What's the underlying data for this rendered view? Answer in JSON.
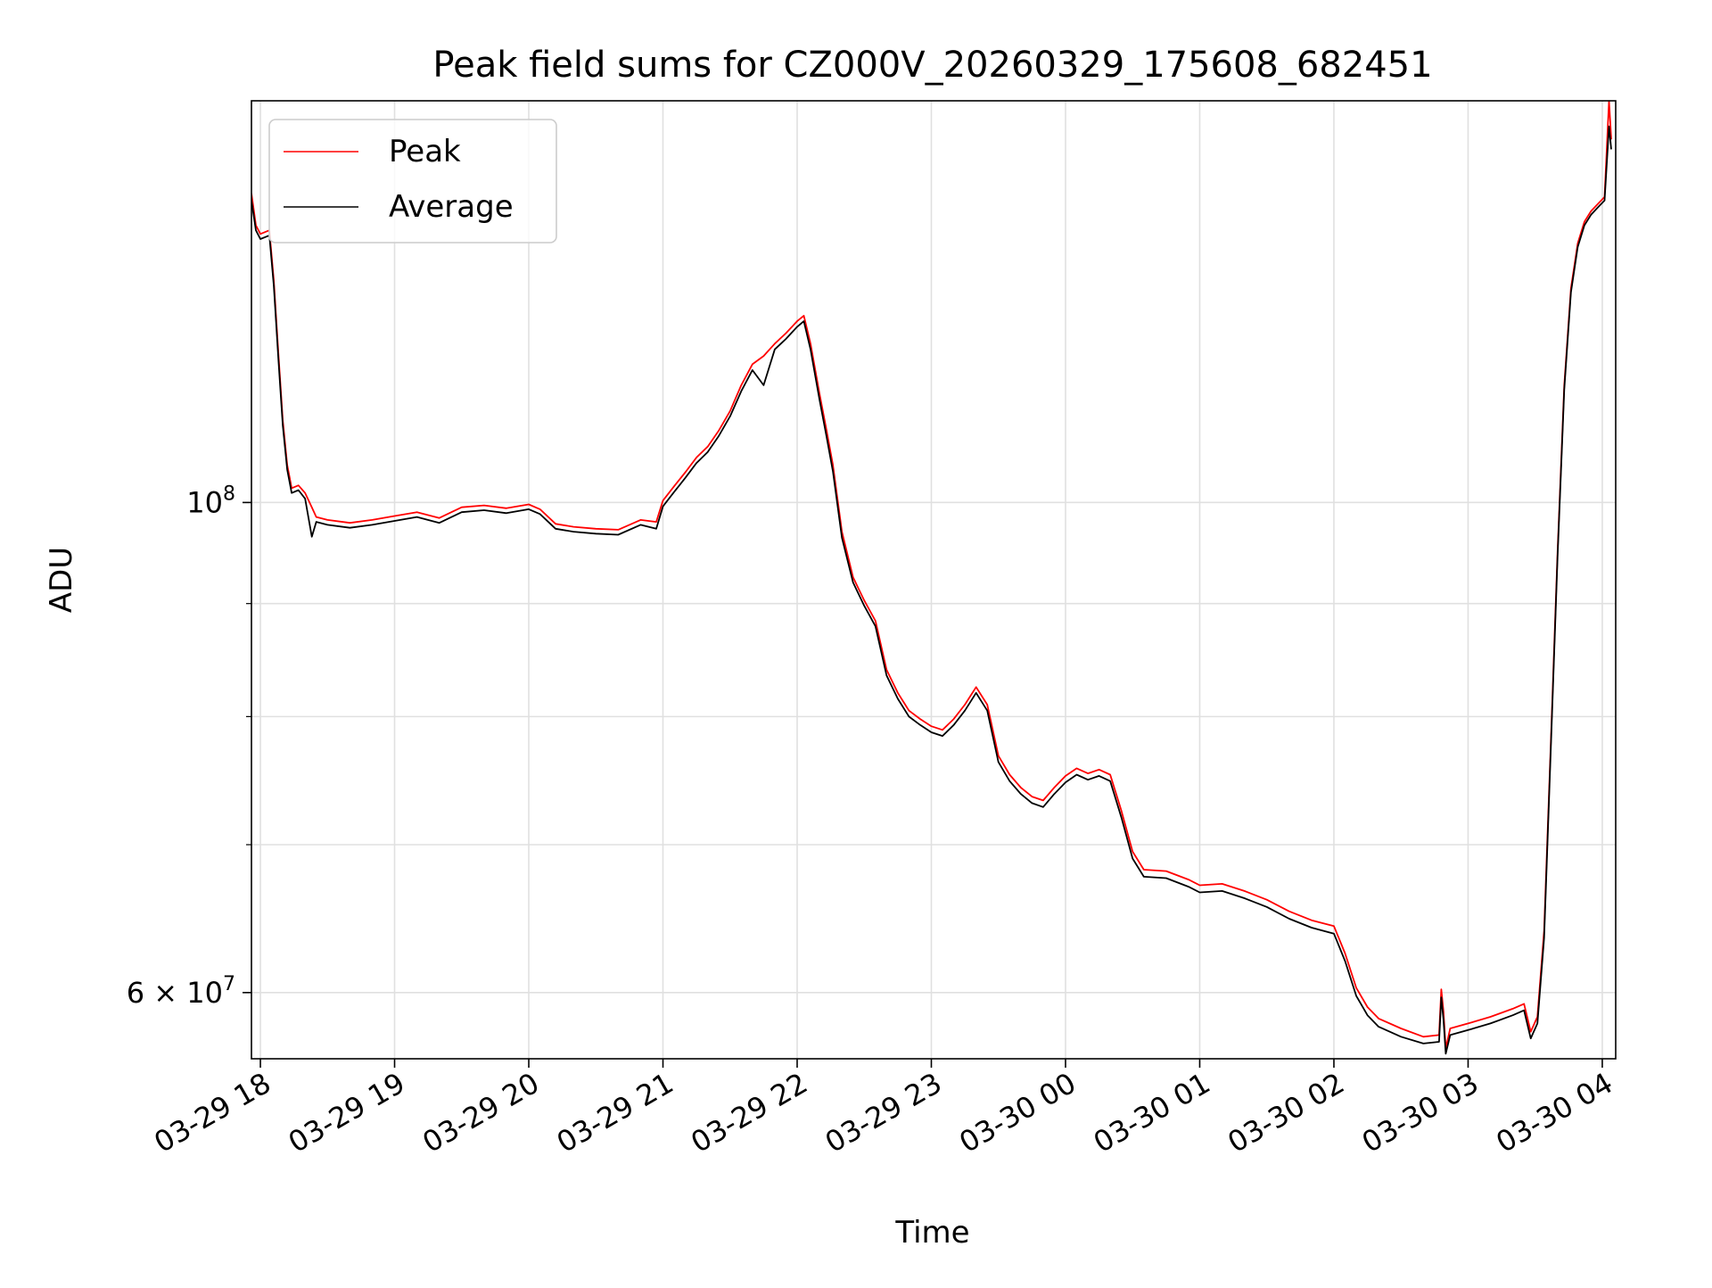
{
  "chart_data": {
    "type": "line",
    "title": "Peak field sums for CZ000V_20260329_175608_682451",
    "xlabel": "Time",
    "ylabel": "ADU",
    "y_scale": "log",
    "ylim": [
      56000000,
      152000000
    ],
    "xlim": [
      "2026-03-29 17:56",
      "2026-03-30 04:06"
    ],
    "x_ticks": [
      {
        "t": "2026-03-29 18:00",
        "label": "03-29 18"
      },
      {
        "t": "2026-03-29 19:00",
        "label": "03-29 19"
      },
      {
        "t": "2026-03-29 20:00",
        "label": "03-29 20"
      },
      {
        "t": "2026-03-29 21:00",
        "label": "03-29 21"
      },
      {
        "t": "2026-03-29 22:00",
        "label": "03-29 22"
      },
      {
        "t": "2026-03-29 23:00",
        "label": "03-29 23"
      },
      {
        "t": "2026-03-30 00:00",
        "label": "03-30 00"
      },
      {
        "t": "2026-03-30 01:00",
        "label": "03-30 01"
      },
      {
        "t": "2026-03-30 02:00",
        "label": "03-30 02"
      },
      {
        "t": "2026-03-30 03:00",
        "label": "03-30 03"
      },
      {
        "t": "2026-03-30 04:00",
        "label": "03-30 04"
      }
    ],
    "y_major_ticks": [
      {
        "value": 60000000,
        "base": "6",
        "mid": " × 10",
        "exp": "7"
      },
      {
        "value": 100000000,
        "base": "10",
        "mid": "",
        "exp": "8"
      }
    ],
    "y_minor_ticks": [
      70000000,
      80000000,
      90000000
    ],
    "grid": true,
    "legend_position": "upper-left",
    "series": [
      {
        "name": "Peak",
        "color": "#ff0000",
        "points": [
          [
            "2026-03-29 17:56",
            138000000
          ],
          [
            "2026-03-29 17:58",
            133500000
          ],
          [
            "2026-03-29 18:00",
            132300000
          ],
          [
            "2026-03-29 18:04",
            132800000
          ],
          [
            "2026-03-29 18:06",
            126000000
          ],
          [
            "2026-03-29 18:08",
            117000000
          ],
          [
            "2026-03-29 18:10",
            109000000
          ],
          [
            "2026-03-29 18:12",
            104000000
          ],
          [
            "2026-03-29 18:14",
            101500000
          ],
          [
            "2026-03-29 18:17",
            101800000
          ],
          [
            "2026-03-29 18:20",
            101000000
          ],
          [
            "2026-03-29 18:23",
            99500000
          ],
          [
            "2026-03-29 18:25",
            98500000
          ],
          [
            "2026-03-29 18:30",
            98200000
          ],
          [
            "2026-03-29 18:40",
            97900000
          ],
          [
            "2026-03-29 18:50",
            98200000
          ],
          [
            "2026-03-29 19:00",
            98600000
          ],
          [
            "2026-03-29 19:10",
            99000000
          ],
          [
            "2026-03-29 19:20",
            98400000
          ],
          [
            "2026-03-29 19:30",
            99500000
          ],
          [
            "2026-03-29 19:40",
            99700000
          ],
          [
            "2026-03-29 19:50",
            99400000
          ],
          [
            "2026-03-29 20:00",
            99800000
          ],
          [
            "2026-03-29 20:05",
            99300000
          ],
          [
            "2026-03-29 20:12",
            97800000
          ],
          [
            "2026-03-29 20:20",
            97500000
          ],
          [
            "2026-03-29 20:30",
            97300000
          ],
          [
            "2026-03-29 20:40",
            97200000
          ],
          [
            "2026-03-29 20:50",
            98200000
          ],
          [
            "2026-03-29 20:57",
            98000000
          ],
          [
            "2026-03-29 21:00",
            100200000
          ],
          [
            "2026-03-29 21:05",
            101700000
          ],
          [
            "2026-03-29 21:10",
            103200000
          ],
          [
            "2026-03-29 21:15",
            104800000
          ],
          [
            "2026-03-29 21:20",
            106000000
          ],
          [
            "2026-03-29 21:25",
            107800000
          ],
          [
            "2026-03-29 21:30",
            110000000
          ],
          [
            "2026-03-29 21:35",
            113000000
          ],
          [
            "2026-03-29 21:40",
            115500000
          ],
          [
            "2026-03-29 21:45",
            116500000
          ],
          [
            "2026-03-29 21:50",
            118000000
          ],
          [
            "2026-03-29 21:55",
            119300000
          ],
          [
            "2026-03-29 22:00",
            120800000
          ],
          [
            "2026-03-29 22:03",
            121500000
          ],
          [
            "2026-03-29 22:06",
            118000000
          ],
          [
            "2026-03-29 22:10",
            112000000
          ],
          [
            "2026-03-29 22:13",
            108000000
          ],
          [
            "2026-03-29 22:16",
            104000000
          ],
          [
            "2026-03-29 22:20",
            97000000
          ],
          [
            "2026-03-29 22:25",
            92500000
          ],
          [
            "2026-03-29 22:30",
            90300000
          ],
          [
            "2026-03-29 22:35",
            88400000
          ],
          [
            "2026-03-29 22:40",
            84000000
          ],
          [
            "2026-03-29 22:45",
            82000000
          ],
          [
            "2026-03-29 22:50",
            80500000
          ],
          [
            "2026-03-29 22:55",
            79800000
          ],
          [
            "2026-03-29 23:00",
            79200000
          ],
          [
            "2026-03-29 23:05",
            78900000
          ],
          [
            "2026-03-29 23:10",
            79800000
          ],
          [
            "2026-03-29 23:15",
            81000000
          ],
          [
            "2026-03-29 23:20",
            82500000
          ],
          [
            "2026-03-29 23:25",
            81000000
          ],
          [
            "2026-03-29 23:30",
            76800000
          ],
          [
            "2026-03-29 23:35",
            75300000
          ],
          [
            "2026-03-29 23:40",
            74300000
          ],
          [
            "2026-03-29 23:45",
            73600000
          ],
          [
            "2026-03-29 23:50",
            73300000
          ],
          [
            "2026-03-29 23:55",
            74300000
          ],
          [
            "2026-03-30 00:00",
            75200000
          ],
          [
            "2026-03-30 00:05",
            75800000
          ],
          [
            "2026-03-30 00:10",
            75400000
          ],
          [
            "2026-03-30 00:15",
            75700000
          ],
          [
            "2026-03-30 00:20",
            75300000
          ],
          [
            "2026-03-30 00:25",
            72500000
          ],
          [
            "2026-03-30 00:30",
            69500000
          ],
          [
            "2026-03-30 00:35",
            68200000
          ],
          [
            "2026-03-30 00:45",
            68100000
          ],
          [
            "2026-03-30 00:55",
            67500000
          ],
          [
            "2026-03-30 01:00",
            67100000
          ],
          [
            "2026-03-30 01:10",
            67200000
          ],
          [
            "2026-03-30 01:20",
            66700000
          ],
          [
            "2026-03-30 01:30",
            66100000
          ],
          [
            "2026-03-30 01:40",
            65300000
          ],
          [
            "2026-03-30 01:50",
            64700000
          ],
          [
            "2026-03-30 02:00",
            64300000
          ],
          [
            "2026-03-30 02:05",
            62500000
          ],
          [
            "2026-03-30 02:10",
            60300000
          ],
          [
            "2026-03-30 02:15",
            59100000
          ],
          [
            "2026-03-30 02:20",
            58400000
          ],
          [
            "2026-03-30 02:30",
            57800000
          ],
          [
            "2026-03-30 02:40",
            57300000
          ],
          [
            "2026-03-30 02:47",
            57400000
          ],
          [
            "2026-03-30 02:48",
            60200000
          ],
          [
            "2026-03-30 02:49",
            58800000
          ],
          [
            "2026-03-30 02:50",
            56600000
          ],
          [
            "2026-03-30 02:52",
            57800000
          ],
          [
            "2026-03-30 03:00",
            58100000
          ],
          [
            "2026-03-30 03:10",
            58500000
          ],
          [
            "2026-03-30 03:20",
            59000000
          ],
          [
            "2026-03-30 03:25",
            59300000
          ],
          [
            "2026-03-30 03:28",
            57600000
          ],
          [
            "2026-03-30 03:31",
            58500000
          ],
          [
            "2026-03-30 03:34",
            64000000
          ],
          [
            "2026-03-30 03:37",
            78000000
          ],
          [
            "2026-03-30 03:40",
            95000000
          ],
          [
            "2026-03-30 03:43",
            113000000
          ],
          [
            "2026-03-30 03:46",
            125000000
          ],
          [
            "2026-03-30 03:49",
            131000000
          ],
          [
            "2026-03-30 03:52",
            134000000
          ],
          [
            "2026-03-30 03:55",
            135500000
          ],
          [
            "2026-03-30 03:58",
            136500000
          ],
          [
            "2026-03-30 04:01",
            137500000
          ],
          [
            "2026-03-30 04:03",
            152000000
          ],
          [
            "2026-03-30 04:04",
            146000000
          ]
        ]
      },
      {
        "name": "Average",
        "color": "#000000",
        "points": [
          [
            "2026-03-29 17:56",
            137000000
          ],
          [
            "2026-03-29 17:58",
            132800000
          ],
          [
            "2026-03-29 18:00",
            131600000
          ],
          [
            "2026-03-29 18:04",
            132100000
          ],
          [
            "2026-03-29 18:06",
            125300000
          ],
          [
            "2026-03-29 18:08",
            116300000
          ],
          [
            "2026-03-29 18:10",
            108400000
          ],
          [
            "2026-03-29 18:12",
            103500000
          ],
          [
            "2026-03-29 18:14",
            101000000
          ],
          [
            "2026-03-29 18:17",
            101300000
          ],
          [
            "2026-03-29 18:20",
            100400000
          ],
          [
            "2026-03-29 18:23",
            96500000
          ],
          [
            "2026-03-29 18:25",
            98000000
          ],
          [
            "2026-03-29 18:30",
            97700000
          ],
          [
            "2026-03-29 18:40",
            97400000
          ],
          [
            "2026-03-29 18:50",
            97700000
          ],
          [
            "2026-03-29 19:00",
            98100000
          ],
          [
            "2026-03-29 19:10",
            98500000
          ],
          [
            "2026-03-29 19:20",
            97900000
          ],
          [
            "2026-03-29 19:30",
            99000000
          ],
          [
            "2026-03-29 19:40",
            99200000
          ],
          [
            "2026-03-29 19:50",
            98900000
          ],
          [
            "2026-03-29 20:00",
            99300000
          ],
          [
            "2026-03-29 20:05",
            98800000
          ],
          [
            "2026-03-29 20:12",
            97300000
          ],
          [
            "2026-03-29 20:20",
            97000000
          ],
          [
            "2026-03-29 20:30",
            96800000
          ],
          [
            "2026-03-29 20:40",
            96700000
          ],
          [
            "2026-03-29 20:50",
            97700000
          ],
          [
            "2026-03-29 20:57",
            97300000
          ],
          [
            "2026-03-29 21:00",
            99600000
          ],
          [
            "2026-03-29 21:05",
            101100000
          ],
          [
            "2026-03-29 21:10",
            102600000
          ],
          [
            "2026-03-29 21:15",
            104200000
          ],
          [
            "2026-03-29 21:20",
            105400000
          ],
          [
            "2026-03-29 21:25",
            107200000
          ],
          [
            "2026-03-29 21:30",
            109400000
          ],
          [
            "2026-03-29 21:35",
            112300000
          ],
          [
            "2026-03-29 21:40",
            114800000
          ],
          [
            "2026-03-29 21:45",
            113000000
          ],
          [
            "2026-03-29 21:50",
            117300000
          ],
          [
            "2026-03-29 21:55",
            118600000
          ],
          [
            "2026-03-29 22:00",
            120100000
          ],
          [
            "2026-03-29 22:03",
            120800000
          ],
          [
            "2026-03-29 22:06",
            117300000
          ],
          [
            "2026-03-29 22:10",
            111300000
          ],
          [
            "2026-03-29 22:13",
            107300000
          ],
          [
            "2026-03-29 22:16",
            103300000
          ],
          [
            "2026-03-29 22:20",
            96400000
          ],
          [
            "2026-03-29 22:25",
            92000000
          ],
          [
            "2026-03-29 22:30",
            89800000
          ],
          [
            "2026-03-29 22:35",
            87900000
          ],
          [
            "2026-03-29 22:40",
            83500000
          ],
          [
            "2026-03-29 22:45",
            81500000
          ],
          [
            "2026-03-29 22:50",
            80000000
          ],
          [
            "2026-03-29 22:55",
            79300000
          ],
          [
            "2026-03-29 23:00",
            78700000
          ],
          [
            "2026-03-29 23:05",
            78400000
          ],
          [
            "2026-03-29 23:10",
            79300000
          ],
          [
            "2026-03-29 23:15",
            80500000
          ],
          [
            "2026-03-29 23:20",
            82000000
          ],
          [
            "2026-03-29 23:25",
            80500000
          ],
          [
            "2026-03-29 23:30",
            76300000
          ],
          [
            "2026-03-29 23:35",
            74800000
          ],
          [
            "2026-03-29 23:40",
            73800000
          ],
          [
            "2026-03-29 23:45",
            73100000
          ],
          [
            "2026-03-29 23:50",
            72800000
          ],
          [
            "2026-03-29 23:55",
            73800000
          ],
          [
            "2026-03-30 00:00",
            74700000
          ],
          [
            "2026-03-30 00:05",
            75300000
          ],
          [
            "2026-03-30 00:10",
            74900000
          ],
          [
            "2026-03-30 00:15",
            75200000
          ],
          [
            "2026-03-30 00:20",
            74800000
          ],
          [
            "2026-03-30 00:25",
            72000000
          ],
          [
            "2026-03-30 00:30",
            69000000
          ],
          [
            "2026-03-30 00:35",
            67700000
          ],
          [
            "2026-03-30 00:45",
            67600000
          ],
          [
            "2026-03-30 00:55",
            67000000
          ],
          [
            "2026-03-30 01:00",
            66600000
          ],
          [
            "2026-03-30 01:10",
            66700000
          ],
          [
            "2026-03-30 01:20",
            66200000
          ],
          [
            "2026-03-30 01:30",
            65600000
          ],
          [
            "2026-03-30 01:40",
            64800000
          ],
          [
            "2026-03-30 01:50",
            64200000
          ],
          [
            "2026-03-30 02:00",
            63800000
          ],
          [
            "2026-03-30 02:05",
            62000000
          ],
          [
            "2026-03-30 02:10",
            59800000
          ],
          [
            "2026-03-30 02:15",
            58600000
          ],
          [
            "2026-03-30 02:20",
            57900000
          ],
          [
            "2026-03-30 02:30",
            57300000
          ],
          [
            "2026-03-30 02:40",
            56900000
          ],
          [
            "2026-03-30 02:47",
            57000000
          ],
          [
            "2026-03-30 02:48",
            59700000
          ],
          [
            "2026-03-30 02:49",
            58300000
          ],
          [
            "2026-03-30 02:50",
            56300000
          ],
          [
            "2026-03-30 02:52",
            57400000
          ],
          [
            "2026-03-30 03:00",
            57700000
          ],
          [
            "2026-03-30 03:10",
            58100000
          ],
          [
            "2026-03-30 03:20",
            58600000
          ],
          [
            "2026-03-30 03:25",
            58900000
          ],
          [
            "2026-03-30 03:28",
            57200000
          ],
          [
            "2026-03-30 03:31",
            58100000
          ],
          [
            "2026-03-30 03:34",
            63500000
          ],
          [
            "2026-03-30 03:37",
            77500000
          ],
          [
            "2026-03-30 03:40",
            94500000
          ],
          [
            "2026-03-30 03:43",
            112500000
          ],
          [
            "2026-03-30 03:46",
            124500000
          ],
          [
            "2026-03-30 03:49",
            130500000
          ],
          [
            "2026-03-30 03:52",
            133500000
          ],
          [
            "2026-03-30 03:55",
            135000000
          ],
          [
            "2026-03-30 03:58",
            136000000
          ],
          [
            "2026-03-30 04:01",
            137000000
          ],
          [
            "2026-03-30 04:03",
            148000000
          ],
          [
            "2026-03-30 04:04",
            144500000
          ]
        ]
      }
    ]
  }
}
